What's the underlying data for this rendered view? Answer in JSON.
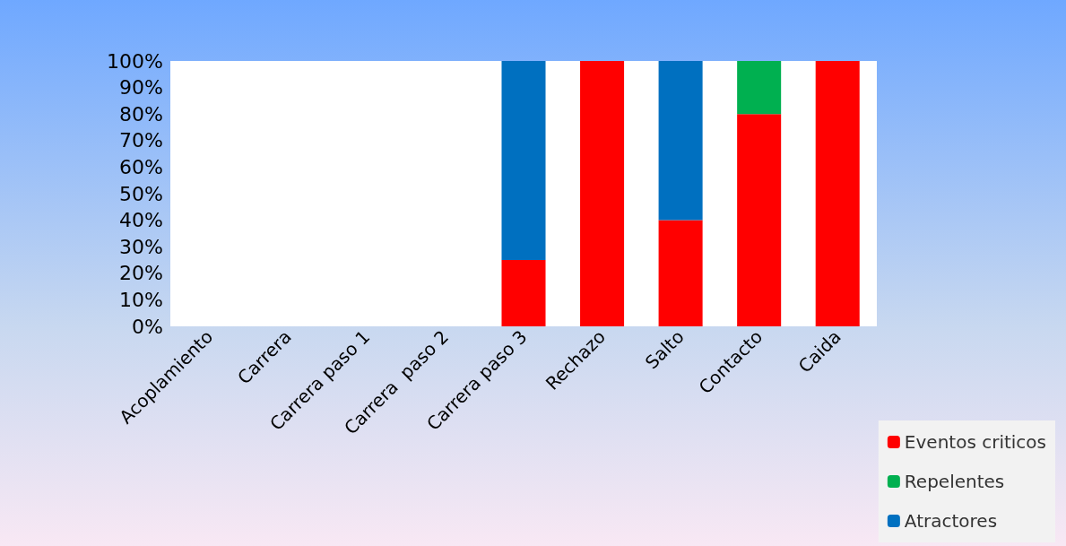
{
  "chart_data": {
    "type": "bar",
    "stacked": true,
    "categories": [
      "Acoplamiento",
      "Carrera",
      "Carrera paso 1",
      "Carrera  paso 2",
      "Carrera paso 3",
      "Rechazo",
      "Salto",
      "Contacto",
      "Caida"
    ],
    "series": [
      {
        "name": "Eventos criticos",
        "color": "#ff0000",
        "values": [
          null,
          null,
          null,
          null,
          25,
          100,
          40,
          80,
          100
        ]
      },
      {
        "name": "Repelentes",
        "color": "#00b050",
        "values": [
          null,
          null,
          null,
          null,
          null,
          null,
          null,
          20,
          null
        ]
      },
      {
        "name": "Atractores",
        "color": "#0070c0",
        "values": [
          null,
          null,
          null,
          null,
          75,
          null,
          60,
          null,
          null
        ]
      }
    ],
    "ylim": [
      0,
      100
    ],
    "yticks": [
      {
        "value": 0,
        "label": "0%"
      },
      {
        "value": 10,
        "label": "10%"
      },
      {
        "value": 20,
        "label": "20%"
      },
      {
        "value": 30,
        "label": "30%"
      },
      {
        "value": 40,
        "label": "40%"
      },
      {
        "value": 50,
        "label": "50%"
      },
      {
        "value": 60,
        "label": "60%"
      },
      {
        "value": 70,
        "label": "70%"
      },
      {
        "value": 80,
        "label": "80%"
      },
      {
        "value": 90,
        "label": "90%"
      },
      {
        "value": 100,
        "label": "100%"
      }
    ],
    "grid": false,
    "legend": "bottom right"
  }
}
